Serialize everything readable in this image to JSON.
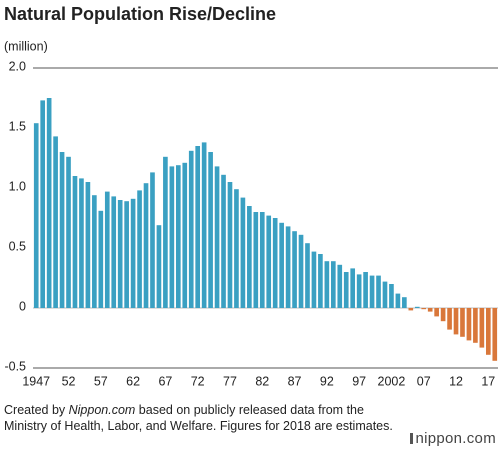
{
  "chart_data": {
    "type": "bar",
    "title": "Natural Population Rise/Decline",
    "y_unit": "(million)",
    "categories": [
      "1947",
      null,
      null,
      null,
      null,
      "52",
      null,
      null,
      null,
      null,
      "57",
      null,
      null,
      null,
      null,
      "62",
      null,
      null,
      null,
      null,
      "67",
      null,
      null,
      null,
      null,
      "72",
      null,
      null,
      null,
      null,
      "77",
      null,
      null,
      null,
      null,
      "82",
      null,
      null,
      null,
      null,
      "87",
      null,
      null,
      null,
      null,
      "92",
      null,
      null,
      null,
      null,
      "97",
      null,
      null,
      null,
      null,
      "2002",
      null,
      null,
      null,
      null,
      "07",
      null,
      null,
      null,
      null,
      "12",
      null,
      null,
      null,
      null,
      "17",
      null
    ],
    "values": [
      1.54,
      1.73,
      1.75,
      1.43,
      1.3,
      1.26,
      1.1,
      1.08,
      1.05,
      0.94,
      0.81,
      0.97,
      0.93,
      0.9,
      0.89,
      0.91,
      0.98,
      1.04,
      1.13,
      0.69,
      1.26,
      1.18,
      1.19,
      1.21,
      1.31,
      1.35,
      1.38,
      1.3,
      1.18,
      1.11,
      1.05,
      0.99,
      0.92,
      0.85,
      0.8,
      0.8,
      0.77,
      0.75,
      0.71,
      0.68,
      0.64,
      0.61,
      0.54,
      0.47,
      0.45,
      0.39,
      0.39,
      0.36,
      0.3,
      0.33,
      0.28,
      0.3,
      0.27,
      0.27,
      0.22,
      0.2,
      0.12,
      0.09,
      -0.02,
      0.01,
      -0.01,
      -0.03,
      -0.07,
      -0.11,
      -0.18,
      -0.22,
      -0.24,
      -0.27,
      -0.29,
      -0.33,
      -0.39,
      -0.44
    ],
    "color": "#3aa0c2",
    "negative_color": "#d9773a",
    "ylim": [
      -0.5,
      2.0
    ],
    "yticks": [
      -0.5,
      0,
      0.5,
      {
        "value": 1.0,
        "label": "1.0"
      },
      {
        "value": 1.5,
        "label": "1.5"
      },
      {
        "value": 2.0,
        "label": "2.0"
      }
    ],
    "grid": false,
    "source_prefix": "Created by ",
    "source_name": "Nippon.com",
    "source_suffix": " based on publicly released data from the Ministry of Health, Labor, and Welfare. Figures for 2018 are estimates.",
    "logo": "nippon.com"
  }
}
